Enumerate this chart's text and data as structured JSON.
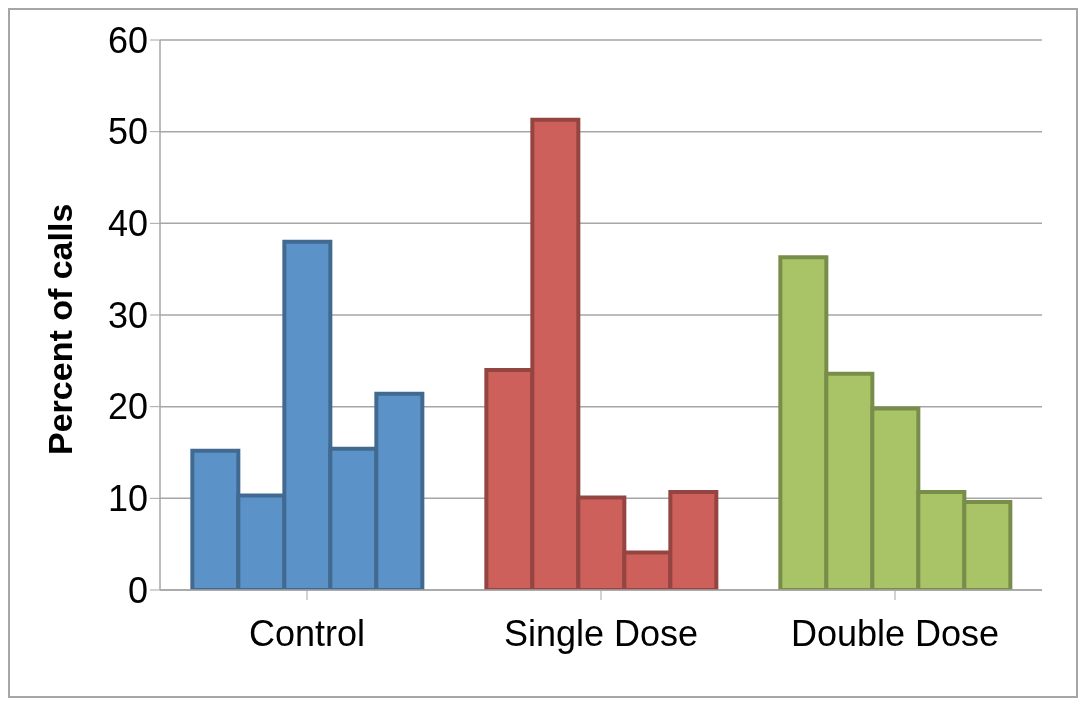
{
  "chart_data": {
    "type": "bar",
    "ylabel": "Percent of calls",
    "categories": [
      "Control",
      "Single Dose",
      "Double Dose"
    ],
    "series": [
      {
        "colors": [
          "#5b93c9",
          "#cd605a",
          "#a8c467"
        ],
        "values": [
          15.2,
          24.0,
          36.3
        ]
      },
      {
        "colors": [
          "#5b93c9",
          "#cd605a",
          "#a8c467"
        ],
        "values": [
          10.3,
          51.3,
          23.6
        ]
      },
      {
        "colors": [
          "#5b93c9",
          "#cd605a",
          "#a8c467"
        ],
        "values": [
          38.0,
          10.1,
          19.8
        ]
      },
      {
        "colors": [
          "#5b93c9",
          "#cd605a",
          "#a8c467"
        ],
        "values": [
          15.4,
          4.1,
          10.7
        ]
      },
      {
        "colors": [
          "#5b93c9",
          "#cd605a",
          "#a8c467"
        ],
        "values": [
          21.4,
          10.7,
          9.6
        ]
      }
    ],
    "ylim": [
      0,
      60
    ],
    "yticks": [
      0,
      10,
      20,
      30,
      40,
      50,
      60
    ],
    "grid": "y",
    "legend": false
  }
}
